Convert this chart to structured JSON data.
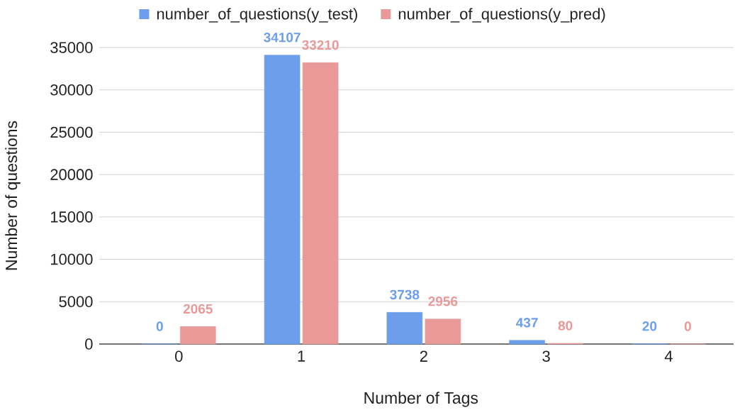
{
  "chart_data": {
    "type": "bar",
    "xlabel": "Number of Tags",
    "ylabel": "Number of questions",
    "categories": [
      "0",
      "1",
      "2",
      "3",
      "4"
    ],
    "series": [
      {
        "name": "number_of_questions(y_test)",
        "color": "#6d9eeb",
        "values": [
          0,
          34107,
          3738,
          437,
          20
        ]
      },
      {
        "name": "number_of_questions(y_pred)",
        "color": "#ea9999",
        "values": [
          2065,
          33210,
          2956,
          80,
          0
        ]
      }
    ],
    "ylim": [
      0,
      35000
    ],
    "yticks": [
      0,
      5000,
      10000,
      15000,
      20000,
      25000,
      30000,
      35000
    ],
    "grid": "y",
    "legend": "top",
    "data_labels": true
  }
}
